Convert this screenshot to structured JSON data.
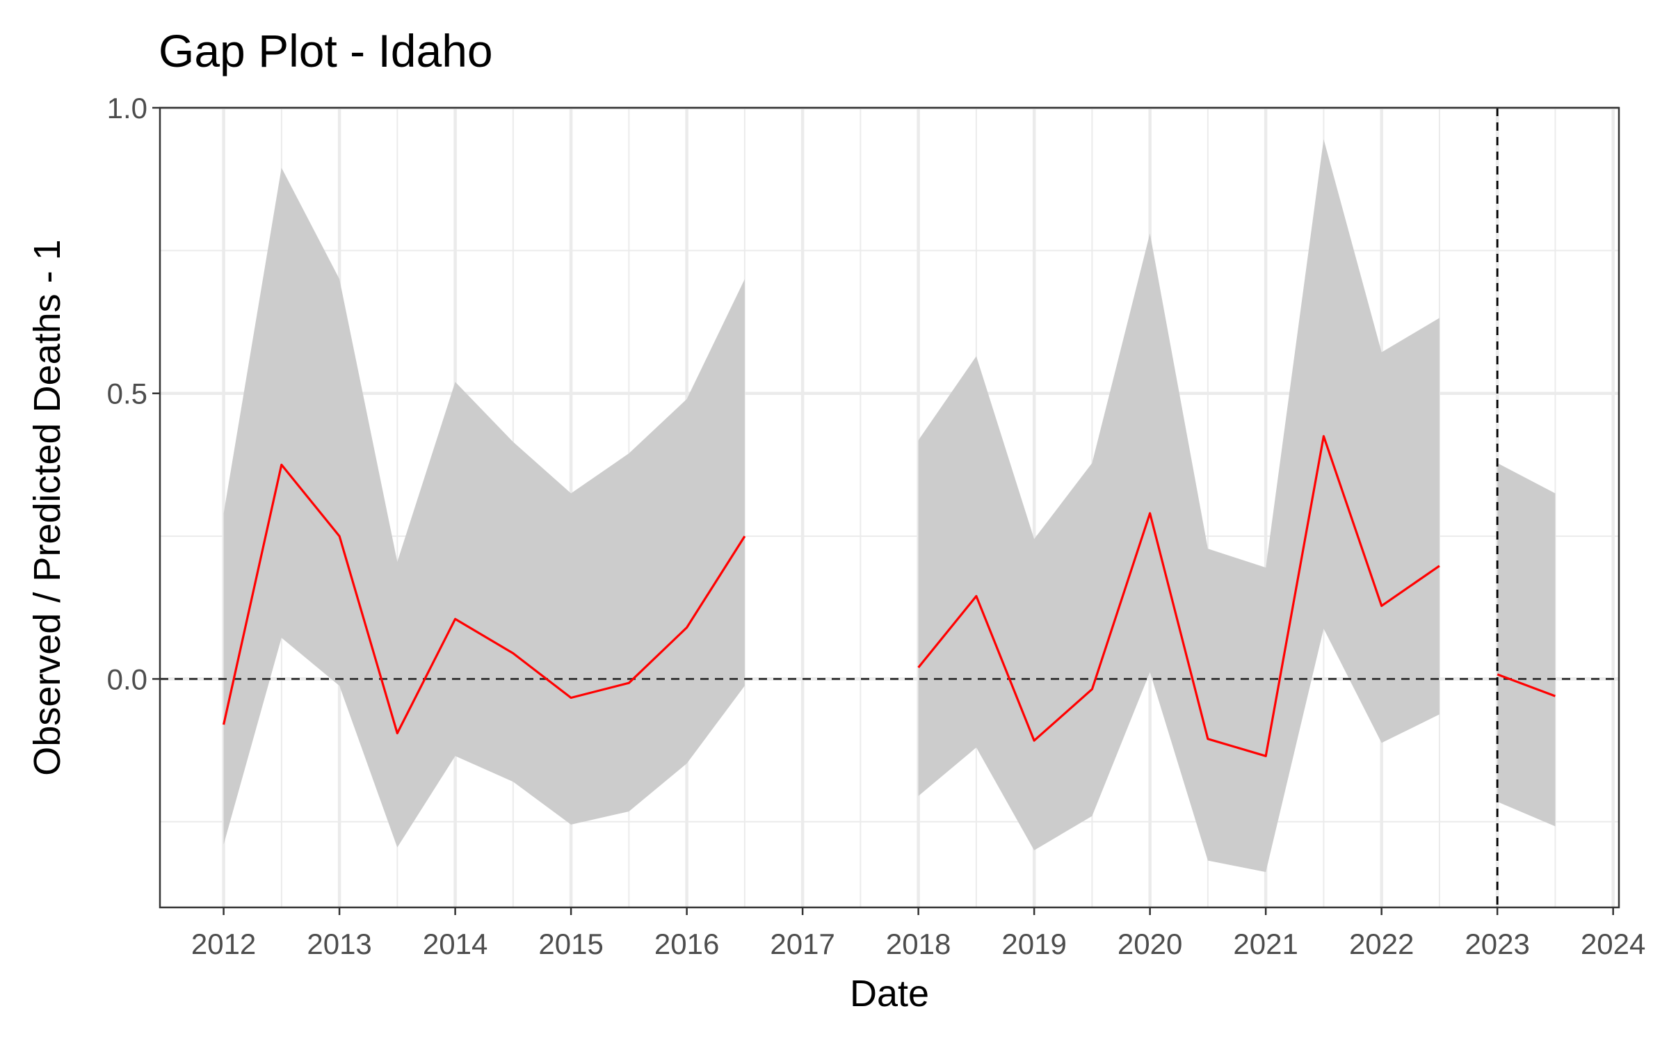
{
  "chart_data": {
    "type": "line",
    "title": "Gap Plot - Idaho",
    "xlabel": "Date",
    "ylabel": "Observed / Predicted Deaths - 1",
    "xlim": [
      2011.45,
      2024.05
    ],
    "ylim": [
      -0.4,
      1.0
    ],
    "x_ticks": [
      2012,
      2013,
      2014,
      2015,
      2016,
      2017,
      2018,
      2019,
      2020,
      2021,
      2022,
      2023,
      2024
    ],
    "x_tick_labels": [
      "2012",
      "2013",
      "2014",
      "2015",
      "2016",
      "2017",
      "2018",
      "2019",
      "2020",
      "2021",
      "2022",
      "2023",
      "2024"
    ],
    "y_ticks": [
      0.0,
      0.5,
      1.0
    ],
    "y_tick_labels": [
      "0.0",
      "0.5",
      "1.0"
    ],
    "reference_lines": {
      "horizontal_y": 0.0,
      "vertical_x": 2023
    },
    "colors": {
      "line": "#ff0000",
      "ribbon": "#cccccc",
      "grid": "#ebebeb",
      "reference": "#333333"
    },
    "segments": [
      {
        "x": [
          2012,
          2012.5,
          2013,
          2013.5,
          2014,
          2014.5,
          2015,
          2015.5,
          2016,
          2016.5
        ],
        "y": [
          -0.08,
          0.375,
          0.25,
          -0.095,
          0.105,
          0.045,
          -0.033,
          -0.007,
          0.09,
          0.25
        ],
        "lower": [
          -0.29,
          0.072,
          -0.012,
          -0.295,
          -0.135,
          -0.18,
          -0.255,
          -0.232,
          -0.148,
          -0.012
        ],
        "upper": [
          0.29,
          0.895,
          0.7,
          0.205,
          0.52,
          0.415,
          0.325,
          0.395,
          0.49,
          0.7
        ]
      },
      {
        "x": [
          2018,
          2018.5,
          2019,
          2019.5,
          2020,
          2020.5,
          2021,
          2021.5,
          2022,
          2022.5
        ],
        "y": [
          0.02,
          0.145,
          -0.108,
          -0.018,
          0.29,
          -0.105,
          -0.135,
          0.425,
          0.128,
          0.198
        ],
        "lower": [
          -0.205,
          -0.12,
          -0.3,
          -0.24,
          0.012,
          -0.318,
          -0.338,
          0.088,
          -0.112,
          -0.062
        ],
        "upper": [
          0.418,
          0.565,
          0.245,
          0.378,
          0.78,
          0.228,
          0.195,
          0.945,
          0.572,
          0.632
        ]
      },
      {
        "x": [
          2023,
          2023.5
        ],
        "y": [
          0.008,
          -0.03
        ],
        "lower": [
          -0.215,
          -0.258
        ],
        "upper": [
          0.378,
          0.325
        ]
      }
    ]
  }
}
